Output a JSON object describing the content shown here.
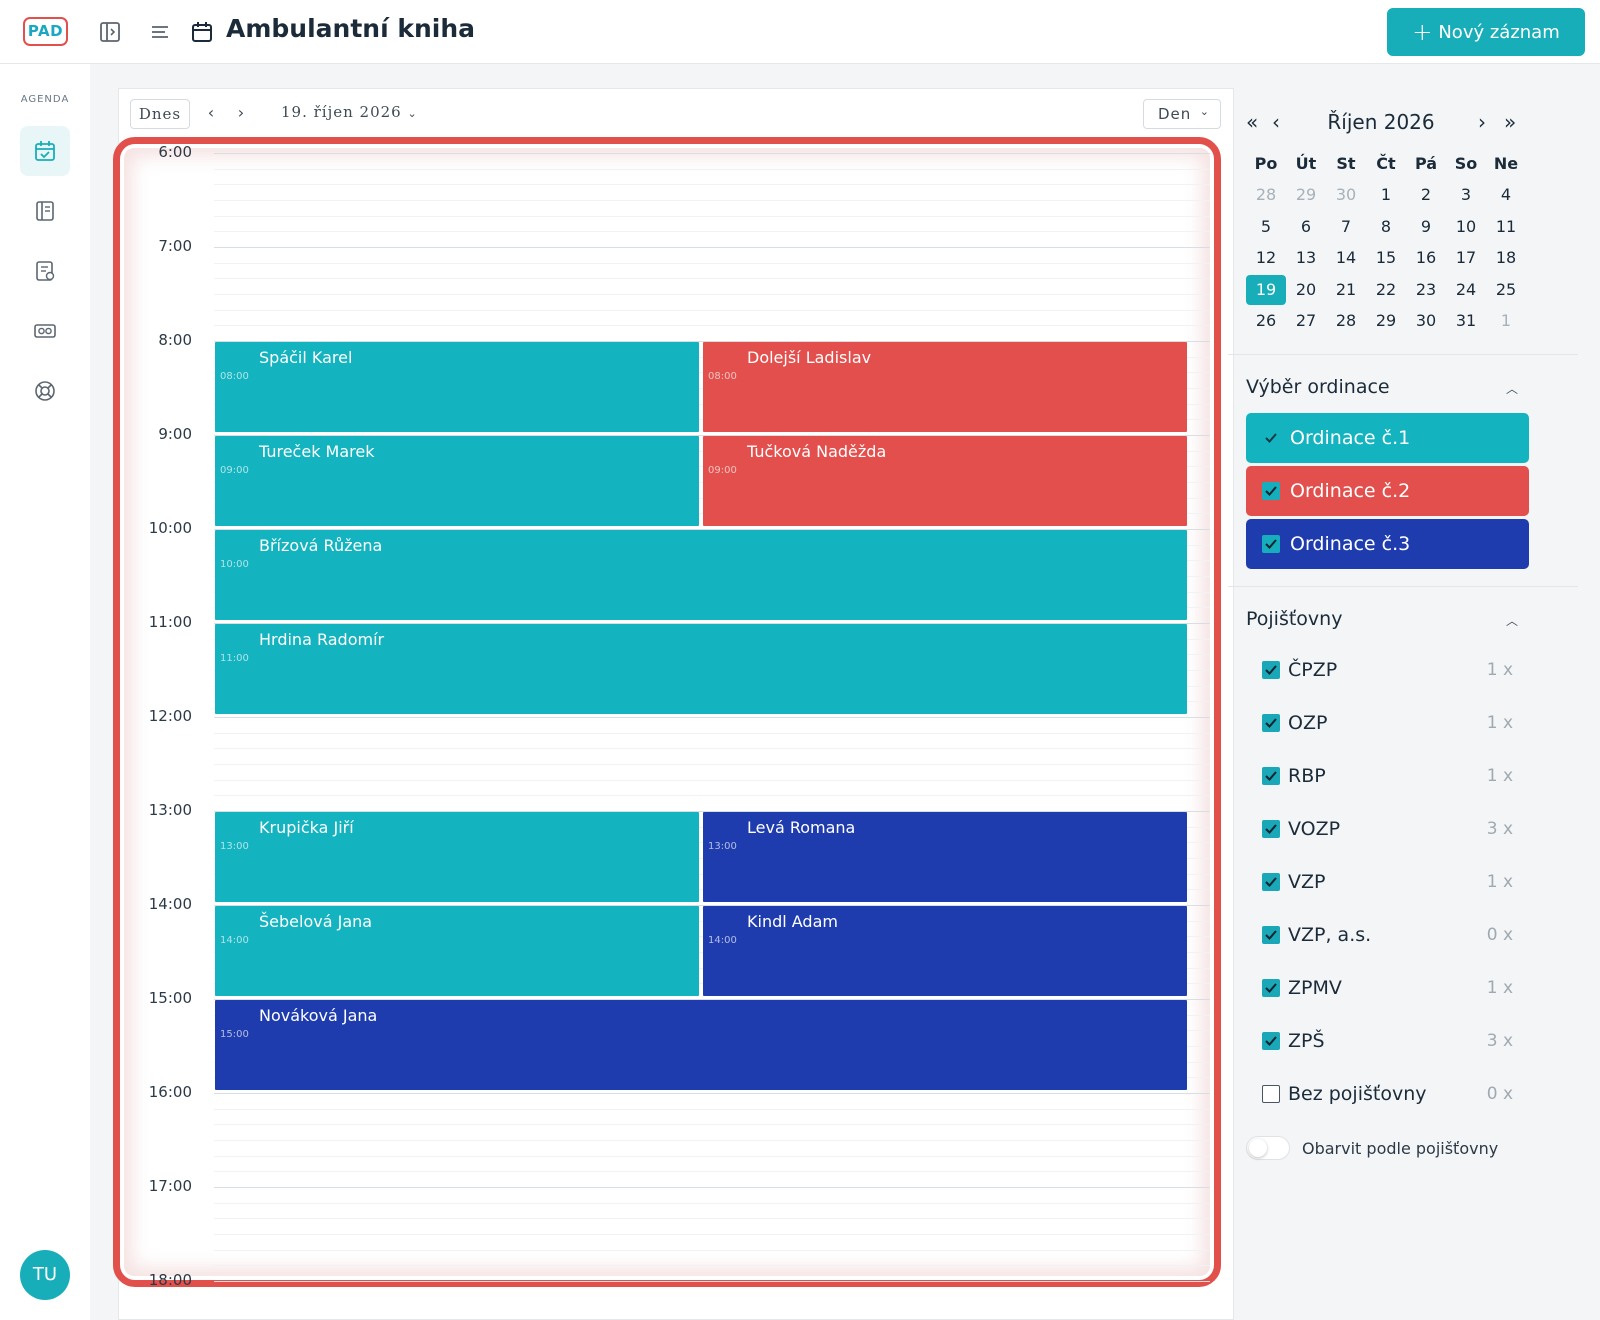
{
  "app": {
    "logo": "PAD",
    "title": "Ambulantní kniha",
    "new_button": "Nový záznam"
  },
  "sidebar": {
    "section": "AGENDA",
    "user_initials": "TU"
  },
  "toolbar": {
    "today": "Dnes",
    "date": "19. říjen 2026",
    "view": "Den"
  },
  "hours": [
    "6:00",
    "7:00",
    "8:00",
    "9:00",
    "10:00",
    "11:00",
    "12:00",
    "13:00",
    "14:00",
    "15:00",
    "16:00",
    "17:00",
    "18:00"
  ],
  "colors": {
    "ordinace1": "#13b3bf",
    "ordinace2": "#e24f4c",
    "ordinace3": "#1f3cae"
  },
  "events": [
    {
      "name": "Spáčil Karel",
      "time": "08:00",
      "start": 8,
      "end": 9,
      "lane": "left",
      "room": 1
    },
    {
      "name": "Dolejší Ladislav",
      "time": "08:00",
      "start": 8,
      "end": 9,
      "lane": "right",
      "room": 2
    },
    {
      "name": "Tureček Marek",
      "time": "09:00",
      "start": 9,
      "end": 10,
      "lane": "left",
      "room": 1
    },
    {
      "name": "Tučková Naděžda",
      "time": "09:00",
      "start": 9,
      "end": 10,
      "lane": "right",
      "room": 2
    },
    {
      "name": "Břízová Růžena",
      "time": "10:00",
      "start": 10,
      "end": 11,
      "lane": "full",
      "room": 1
    },
    {
      "name": "Hrdina Radomír",
      "time": "11:00",
      "start": 11,
      "end": 12,
      "lane": "full",
      "room": 1
    },
    {
      "name": "Krupička Jiří",
      "time": "13:00",
      "start": 13,
      "end": 14,
      "lane": "left",
      "room": 1
    },
    {
      "name": "Levá Romana",
      "time": "13:00",
      "start": 13,
      "end": 14,
      "lane": "right",
      "room": 3
    },
    {
      "name": "Šebelová Jana",
      "time": "14:00",
      "start": 14,
      "end": 15,
      "lane": "left",
      "room": 1
    },
    {
      "name": "Kindl Adam",
      "time": "14:00",
      "start": 14,
      "end": 15,
      "lane": "right",
      "room": 3
    },
    {
      "name": "Nováková Jana",
      "time": "15:00",
      "start": 15,
      "end": 16,
      "lane": "full",
      "room": 3
    }
  ],
  "mini_calendar": {
    "title": "Říjen 2026",
    "prev_year": "«",
    "prev_month": "‹",
    "next_month": "›",
    "next_year": "»",
    "weekdays": [
      "Po",
      "Út",
      "St",
      "Čt",
      "Pá",
      "So",
      "Ne"
    ],
    "weeks": [
      [
        "28",
        "29",
        "30",
        "1",
        "2",
        "3",
        "4"
      ],
      [
        "5",
        "6",
        "7",
        "8",
        "9",
        "10",
        "11"
      ],
      [
        "12",
        "13",
        "14",
        "15",
        "16",
        "17",
        "18"
      ],
      [
        "19",
        "20",
        "21",
        "22",
        "23",
        "24",
        "25"
      ],
      [
        "26",
        "27",
        "28",
        "29",
        "30",
        "31",
        "1"
      ]
    ],
    "muted": [
      [
        0,
        0
      ],
      [
        0,
        1
      ],
      [
        0,
        2
      ],
      [
        4,
        6
      ]
    ],
    "selected": [
      3,
      0
    ]
  },
  "ordinace": {
    "title": "Výběr ordinace",
    "items": [
      {
        "label": "Ordinace č.1",
        "checked": true
      },
      {
        "label": "Ordinace č.2",
        "checked": true
      },
      {
        "label": "Ordinace č.3",
        "checked": true
      }
    ]
  },
  "insurance": {
    "title": "Pojišťovny",
    "items": [
      {
        "label": "ČPZP",
        "count": "1 x",
        "checked": true
      },
      {
        "label": "OZP",
        "count": "1 x",
        "checked": true
      },
      {
        "label": "RBP",
        "count": "1 x",
        "checked": true
      },
      {
        "label": "VOZP",
        "count": "3 x",
        "checked": true
      },
      {
        "label": "VZP",
        "count": "1 x",
        "checked": true
      },
      {
        "label": "VZP, a.s.",
        "count": "0 x",
        "checked": true
      },
      {
        "label": "ZPMV",
        "count": "1 x",
        "checked": true
      },
      {
        "label": "ZPŠ",
        "count": "3 x",
        "checked": true
      },
      {
        "label": "Bez pojišťovny",
        "count": "0 x",
        "checked": false
      }
    ],
    "color_toggle": "Obarvit podle pojišťovny"
  }
}
